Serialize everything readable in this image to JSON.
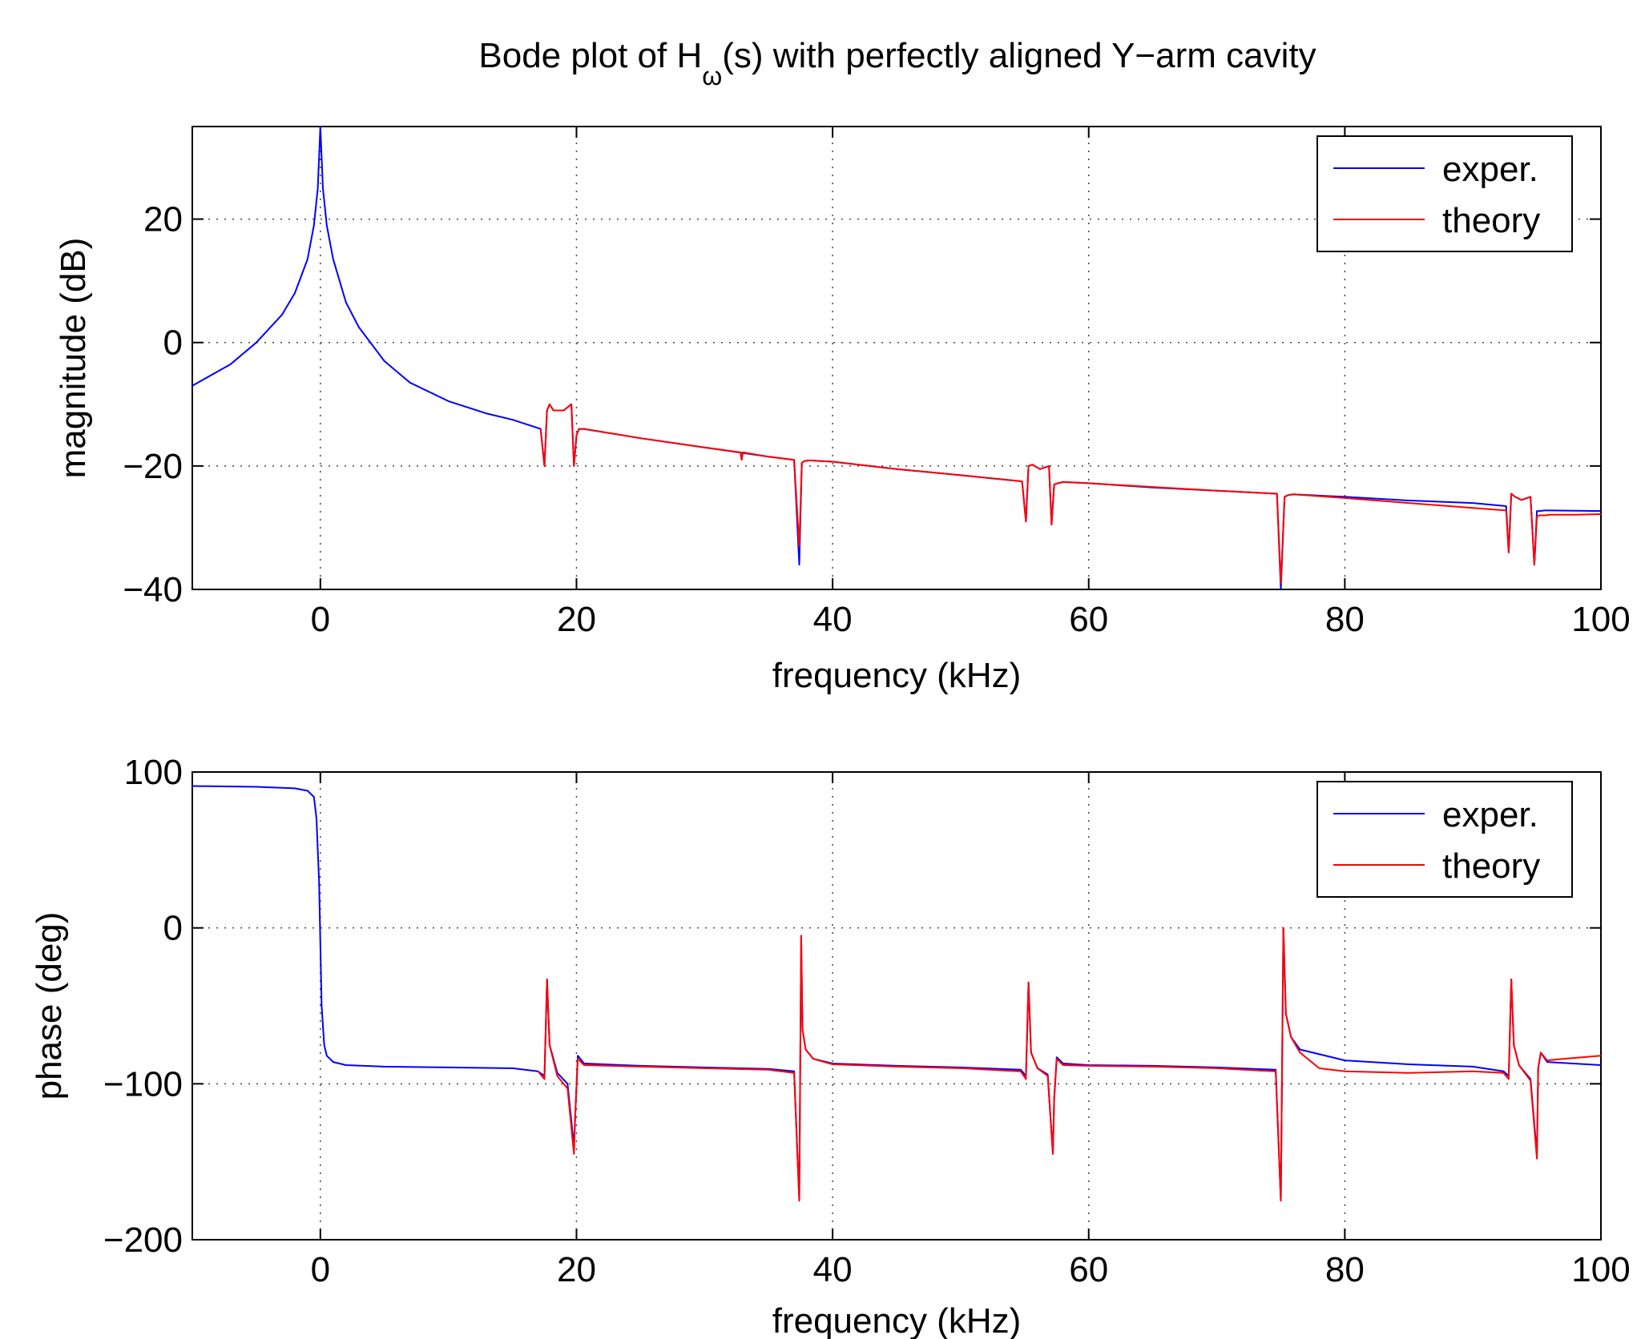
{
  "title": {
    "main": "Bode plot of H",
    "subscript": "ω",
    "rest": "(s) with perfectly aligned Y−arm cavity"
  },
  "colors": {
    "exper": "#0000ff",
    "theory": "#ff0000",
    "grid": "#444444"
  },
  "chart_data": [
    {
      "type": "line",
      "xlabel": "frequency (kHz)",
      "ylabel": "magnitude (dB)",
      "xlim": [
        -10,
        100
      ],
      "ylim": [
        -40,
        35
      ],
      "xticks": [
        0,
        20,
        40,
        60,
        80,
        100
      ],
      "xtick_labels": [
        "0",
        "20",
        "40",
        "60",
        "80",
        "100"
      ],
      "yticks": [
        -40,
        -20,
        0,
        20
      ],
      "ytick_labels": [
        "−40",
        "−20",
        "0",
        "20"
      ],
      "grid": true,
      "legend": {
        "position": "top-right",
        "entries": [
          "exper.",
          "theory"
        ]
      },
      "series": [
        {
          "name": "exper.",
          "color": "#0000ff",
          "x": [
            -10,
            -7,
            -5,
            -3,
            -2,
            -1,
            -0.5,
            -0.2,
            0,
            0.2,
            0.5,
            1,
            2,
            3,
            5,
            7,
            10,
            13,
            15,
            17.2,
            17.5,
            17.7,
            17.9,
            18.2,
            19.0,
            19.6,
            19.8,
            20.0,
            20.2,
            20.6,
            25,
            30,
            35,
            37.0,
            37.4,
            37.6,
            37.8,
            38.2,
            40,
            45,
            50,
            54.8,
            55.1,
            55.3,
            55.6,
            56.2,
            56.9,
            57.1,
            57.3,
            57.6,
            58.0,
            60,
            65,
            70,
            74.7,
            75.0,
            75.3,
            75.6,
            76.0,
            80,
            85,
            90,
            92.6,
            92.8,
            93.0,
            93.3,
            93.8,
            94.5,
            94.8,
            95.0,
            95.2,
            95.6,
            96.0,
            100
          ],
          "y": [
            -7,
            -3.5,
            0,
            4.5,
            8,
            13.5,
            19,
            25,
            35,
            25,
            19,
            13.5,
            6.5,
            2.5,
            -3,
            -6.5,
            -9.5,
            -11.5,
            -12.5,
            -14,
            -20,
            -11,
            -10,
            -11,
            -11,
            -10,
            -20,
            -15,
            -14,
            -14,
            -15.5,
            -17,
            -18.5,
            -19,
            -36,
            -19.5,
            -19.2,
            -19.1,
            -19.3,
            -20.5,
            -21.5,
            -22.5,
            -29,
            -20,
            -19.8,
            -20.5,
            -20,
            -29.5,
            -23,
            -22.8,
            -22.6,
            -22.8,
            -23.5,
            -24,
            -24.5,
            -40,
            -25,
            -24.7,
            -24.6,
            -25,
            -25.6,
            -26,
            -26.5,
            -34,
            -24.5,
            -25,
            -25.5,
            -25,
            -36,
            -27.3,
            -27.3,
            -27.2,
            -27.2,
            -27.3
          ]
        },
        {
          "name": "theory",
          "color": "#ff0000",
          "x": [
            17.2,
            17.5,
            17.7,
            17.9,
            18.2,
            19.0,
            19.6,
            19.8,
            20.0,
            20.2,
            20.6,
            25,
            30,
            32.8,
            32.9,
            33.0,
            35,
            37.0,
            37.4,
            37.6,
            37.8,
            38.2,
            40,
            45,
            50,
            54.8,
            55.1,
            55.3,
            55.6,
            56.2,
            56.9,
            57.1,
            57.3,
            57.6,
            58.0,
            60,
            65,
            70,
            74.7,
            75.0,
            75.3,
            75.6,
            76.0,
            80,
            85,
            90,
            92.6,
            92.8,
            93.0,
            93.3,
            93.8,
            94.5,
            94.8,
            95.0,
            95.2,
            95.6,
            96.0,
            98,
            100
          ],
          "y": [
            -14,
            -20,
            -11,
            -10,
            -11,
            -11,
            -10,
            -20,
            -15,
            -14,
            -14,
            -15.5,
            -17,
            -17.8,
            -19,
            -17.8,
            -18.5,
            -19,
            -33,
            -19.5,
            -19.2,
            -19.1,
            -19.3,
            -20.5,
            -21.5,
            -22.5,
            -29,
            -20,
            -19.8,
            -20.5,
            -20,
            -29.5,
            -23,
            -22.8,
            -22.6,
            -22.8,
            -23.4,
            -24,
            -24.5,
            -39,
            -25,
            -24.7,
            -24.6,
            -25.2,
            -26,
            -26.8,
            -27.2,
            -34,
            -24.5,
            -25,
            -25.5,
            -25,
            -36,
            -28.2,
            -28,
            -28,
            -27.9,
            -27.9,
            -27.8
          ]
        }
      ]
    },
    {
      "type": "line",
      "xlabel": "frequency (kHz)",
      "ylabel": "phase (deg)",
      "xlim": [
        -10,
        100
      ],
      "ylim": [
        -200,
        100
      ],
      "xticks": [
        0,
        20,
        40,
        60,
        80,
        100
      ],
      "xtick_labels": [
        "0",
        "20",
        "40",
        "60",
        "80",
        "100"
      ],
      "yticks": [
        -200,
        -100,
        0,
        100
      ],
      "ytick_labels": [
        "−200",
        "−100",
        "0",
        "100"
      ],
      "grid": true,
      "legend": {
        "position": "top-right",
        "entries": [
          "exper.",
          "theory"
        ]
      },
      "series": [
        {
          "name": "exper.",
          "color": "#0000ff",
          "x": [
            -10,
            -5,
            -2,
            -1,
            -0.5,
            -0.3,
            -0.1,
            0,
            0.1,
            0.3,
            0.5,
            1,
            2,
            5,
            10,
            15,
            17,
            17.5,
            17.7,
            17.9,
            18.5,
            19.3,
            19.8,
            19.9,
            20.1,
            20.6,
            25,
            30,
            35,
            37.0,
            37.4,
            37.55,
            37.65,
            37.9,
            38.5,
            40,
            45,
            50,
            54.7,
            55.1,
            55.3,
            55.5,
            56.0,
            56.8,
            57.2,
            57.3,
            57.5,
            58.0,
            60,
            65,
            70,
            74.6,
            75.0,
            75.2,
            75.4,
            75.8,
            76.5,
            80,
            85,
            90,
            92.4,
            92.8,
            93.0,
            93.2,
            93.6,
            94.5,
            95.0,
            95.1,
            95.3,
            95.8,
            100
          ],
          "y": [
            91,
            90.5,
            89.5,
            88,
            84,
            70,
            30,
            -10,
            -50,
            -75,
            -82,
            -86,
            -88,
            -89,
            -89.5,
            -90,
            -92,
            -95,
            -33,
            -75,
            -93,
            -100,
            -140,
            -120,
            -82,
            -87,
            -88.5,
            -89.5,
            -90.5,
            -92,
            -175,
            -5,
            -65,
            -78,
            -84,
            -87,
            -88.5,
            -89.5,
            -91,
            -95,
            -35,
            -80,
            -90,
            -94,
            -145,
            -110,
            -83,
            -87,
            -88,
            -88.5,
            -89.5,
            -91,
            -175,
            0,
            -55,
            -70,
            -78,
            -85,
            -87.5,
            -89,
            -92,
            -95,
            -33,
            -75,
            -88,
            -97,
            -145,
            -90,
            -80,
            -86,
            -88
          ]
        },
        {
          "name": "theory",
          "color": "#ff0000",
          "x": [
            17.0,
            17.5,
            17.7,
            17.9,
            18.5,
            19.3,
            19.8,
            19.9,
            20.1,
            20.6,
            25,
            30,
            35,
            37.0,
            37.4,
            37.55,
            37.65,
            37.9,
            38.5,
            40,
            45,
            50,
            54.7,
            55.1,
            55.3,
            55.5,
            56.0,
            56.8,
            57.2,
            57.3,
            57.5,
            58.0,
            60,
            65,
            70,
            74.6,
            75.0,
            75.2,
            75.4,
            75.8,
            76.5,
            78,
            80,
            85,
            90,
            92.4,
            92.8,
            93.0,
            93.2,
            93.6,
            94.5,
            95.0,
            95.1,
            95.3,
            95.8,
            97,
            100
          ],
          "y": [
            -92,
            -97,
            -33,
            -75,
            -95,
            -103,
            -145,
            -120,
            -84,
            -88,
            -89,
            -90,
            -91,
            -93,
            -175,
            -5,
            -65,
            -78,
            -84,
            -87.5,
            -89,
            -90,
            -92,
            -97,
            -35,
            -80,
            -90,
            -95,
            -145,
            -110,
            -84,
            -88,
            -88.5,
            -89,
            -90,
            -92,
            -175,
            0,
            -55,
            -70,
            -80,
            -90,
            -92,
            -93,
            -92,
            -93,
            -97,
            -33,
            -75,
            -88,
            -98,
            -148,
            -90,
            -80,
            -85,
            -84,
            -82
          ]
        }
      ]
    }
  ]
}
